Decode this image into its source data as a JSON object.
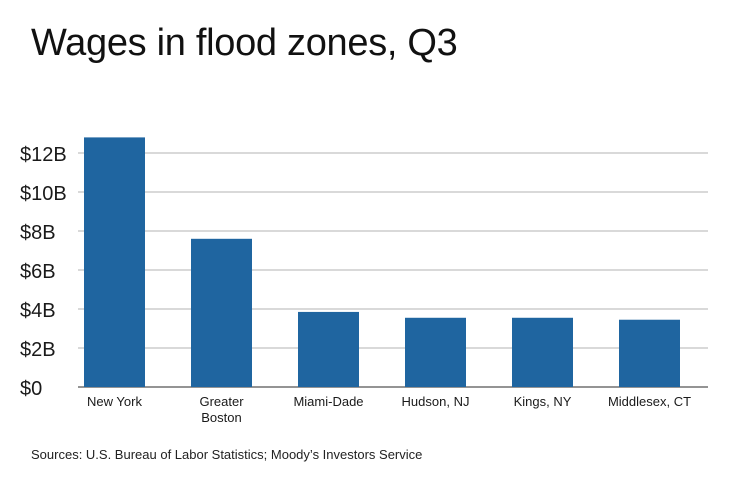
{
  "chart_data": {
    "type": "bar",
    "title": "Wages in flood zones, Q3",
    "source": "Sources: U.S. Bureau of Labor Statistics; Moody’s Investors Service",
    "categories": [
      [
        "New York"
      ],
      [
        "Greater",
        "Boston"
      ],
      [
        "Miami-Dade"
      ],
      [
        "Hudson, NJ"
      ],
      [
        "Kings, NY"
      ],
      [
        "Middlesex, CT"
      ]
    ],
    "values": [
      12.8,
      7.6,
      3.85,
      3.55,
      3.55,
      3.45
    ],
    "unit": "billions of dollars",
    "ylim": [
      0,
      12
    ],
    "yticks": [
      0,
      2,
      4,
      6,
      8,
      10,
      12
    ],
    "ytick_labels": [
      "$0",
      "$2B",
      "$4B",
      "$6B",
      "$8B",
      "$10B",
      "$12B"
    ],
    "xlabel": "",
    "ylabel": "",
    "grid": true,
    "legend": false,
    "colors": {
      "bar": "#1f65a0",
      "grid": "#9a9a9a",
      "axis": "#555555",
      "text": "#1a1a1a"
    }
  }
}
